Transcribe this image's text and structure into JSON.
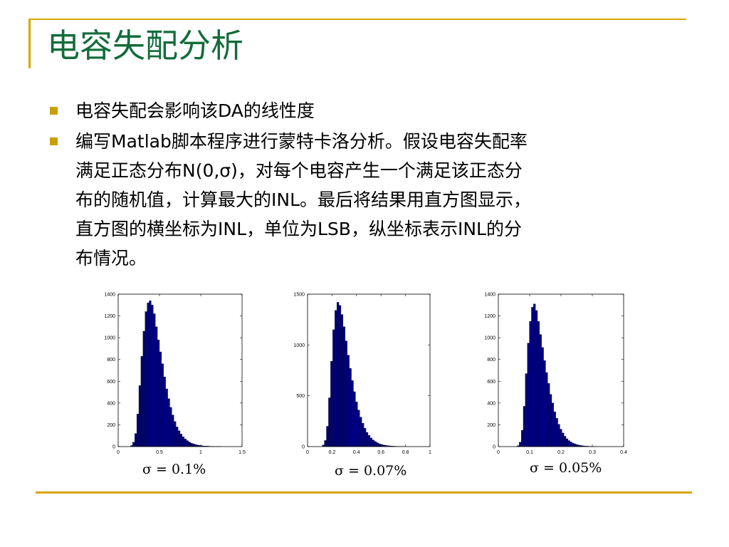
{
  "slide": {
    "title": "电容失配分析",
    "bullets": [
      {
        "lines": [
          "电容失配会影响该DA的线性度"
        ]
      },
      {
        "lines": [
          "编写Matlab脚本程序进行蒙特卡洛分析。假设电容失配率",
          "满足正态分布N(0,σ)，对每个电容产生一个满足该正态分",
          "布的随机值，计算最大的INL。最后将结果用直方图显示，",
          "直方图的横坐标为INL，单位为LSB，纵坐标表示INL的分",
          "布情况。"
        ]
      }
    ],
    "captions": [
      "σ = 0.1%",
      "σ = 0.07%",
      "σ = 0.05%"
    ]
  },
  "chart_data": [
    {
      "type": "bar",
      "title": "",
      "xlabel": "",
      "ylabel": "",
      "xlim": [
        0,
        1.5
      ],
      "ylim": [
        0,
        1400
      ],
      "xticks": [
        0,
        0.5,
        1,
        1.5
      ],
      "xtick_labels": [
        "0",
        "0.5",
        "1",
        "1.5"
      ],
      "yticks": [
        0,
        200,
        400,
        600,
        800,
        1000,
        1200,
        1400
      ],
      "ytick_labels": [
        "0",
        "200",
        "400",
        "600",
        "800",
        "1000",
        "1200",
        "1400"
      ],
      "bin_start": 0.15,
      "bin_width": 0.025,
      "values": [
        10,
        40,
        120,
        300,
        560,
        830,
        1060,
        1240,
        1320,
        1340,
        1300,
        1220,
        1100,
        980,
        870,
        760,
        640,
        530,
        440,
        360,
        290,
        230,
        180,
        145,
        115,
        90,
        70,
        55,
        42,
        32,
        25,
        19,
        14,
        11,
        8,
        6,
        5,
        4,
        3,
        2,
        2,
        1,
        1,
        1
      ],
      "bar_color": "#000080"
    },
    {
      "type": "bar",
      "title": "",
      "xlabel": "",
      "ylabel": "",
      "xlim": [
        0,
        1
      ],
      "ylim": [
        0,
        1500
      ],
      "xticks": [
        0,
        0.2,
        0.4,
        0.6,
        0.8,
        1
      ],
      "xtick_labels": [
        "0",
        "0.2",
        "0.4",
        "0.6",
        "0.8",
        "1"
      ],
      "yticks": [
        0,
        500,
        1000,
        1500
      ],
      "ytick_labels": [
        "0",
        "500",
        "1000",
        "1500"
      ],
      "bin_start": 0.12,
      "bin_width": 0.017,
      "values": [
        15,
        60,
        200,
        480,
        840,
        1150,
        1340,
        1420,
        1390,
        1300,
        1180,
        1040,
        900,
        770,
        650,
        540,
        440,
        360,
        290,
        230,
        180,
        140,
        110,
        85,
        65,
        50,
        38,
        28,
        21,
        16,
        12,
        9,
        7,
        5,
        4,
        3,
        2,
        2,
        1,
        1
      ],
      "bar_color": "#000080"
    },
    {
      "type": "bar",
      "title": "",
      "xlabel": "",
      "ylabel": "",
      "xlim": [
        0,
        0.4
      ],
      "ylim": [
        0,
        1400
      ],
      "xticks": [
        0,
        0.1,
        0.2,
        0.3,
        0.4
      ],
      "xtick_labels": [
        "0",
        "0.1",
        "0.2",
        "0.3",
        "0.4"
      ],
      "yticks": [
        0,
        200,
        400,
        600,
        800,
        1000,
        1200,
        1400
      ],
      "ytick_labels": [
        "0",
        "200",
        "400",
        "600",
        "800",
        "1000",
        "1200",
        "1400"
      ],
      "bin_start": 0.06,
      "bin_width": 0.0065,
      "values": [
        8,
        40,
        150,
        370,
        670,
        950,
        1150,
        1280,
        1310,
        1250,
        1150,
        1030,
        910,
        790,
        680,
        580,
        480,
        400,
        320,
        260,
        205,
        160,
        125,
        95,
        72,
        55,
        42,
        32,
        24,
        18,
        13,
        10,
        7,
        5,
        4,
        3,
        2,
        1,
        1
      ],
      "bar_color": "#000080"
    }
  ]
}
